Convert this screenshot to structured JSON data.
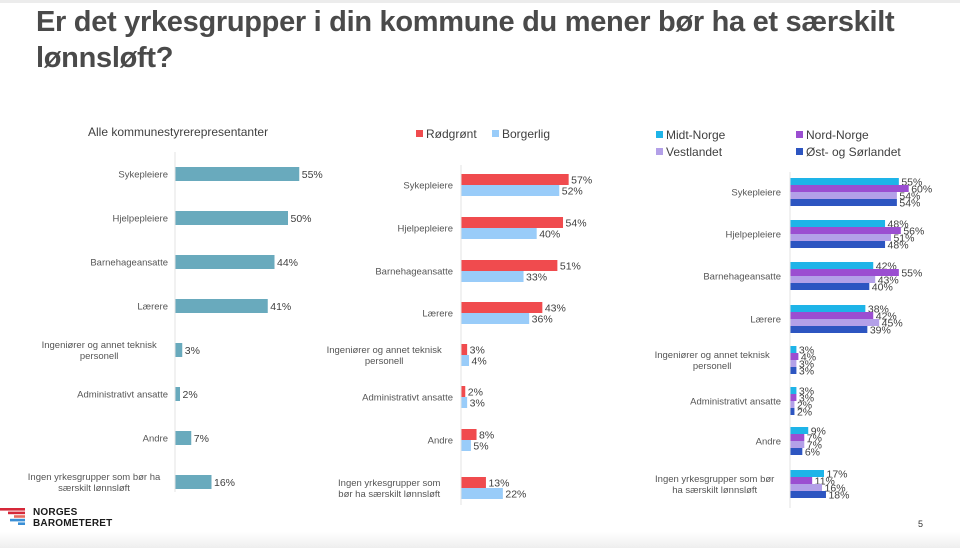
{
  "slide": {
    "title": "Er det yrkesgrupper i din kommune du mener bør ha et særskilt lønnsløft?",
    "page_number": "5",
    "logo_line1": "NORGES",
    "logo_line2": "BAROMETERET"
  },
  "colors": {
    "all": "#69AABD",
    "rodgront": "#F04B4E",
    "borgerlig": "#99CCF9",
    "midt_norge": "#1EB4E8",
    "nord_norge": "#9B4ED1",
    "vestlandet": "#B3A0E8",
    "ost_sorlandet": "#2D55C1"
  },
  "chart_data": [
    {
      "type": "bar",
      "orientation": "horizontal",
      "title": "Alle kommunestyrerepresentanter",
      "categories": [
        [
          "Sykepleiere"
        ],
        [
          "Hjelpepleiere"
        ],
        [
          "Barnehageansatte"
        ],
        [
          "Lærere"
        ],
        [
          "Ingeniører og annet teknisk",
          "personell"
        ],
        [
          "Administrativt ansatte"
        ],
        [
          "Andre"
        ],
        [
          "Ingen yrkesgrupper som bør ha",
          "særskilt lønnsløft"
        ]
      ],
      "series": [
        {
          "name": "Alle kommunestyrerepresentanter",
          "color_key": "all",
          "values": [
            55,
            50,
            44,
            41,
            3,
            2,
            7,
            16
          ]
        }
      ],
      "unit": "%",
      "xlabel": "",
      "ylabel": "",
      "xlim": [
        0,
        60
      ],
      "grid": false,
      "legend": "none"
    },
    {
      "type": "bar",
      "orientation": "horizontal",
      "title": "",
      "categories": [
        [
          "Sykepleiere"
        ],
        [
          "Hjelpepleiere"
        ],
        [
          "Barnehageansatte"
        ],
        [
          "Lærere"
        ],
        [
          "Ingeniører og annet teknisk",
          "personell"
        ],
        [
          "Administrativt ansatte"
        ],
        [
          "Andre"
        ],
        [
          "Ingen yrkesgrupper som",
          "bør ha særskilt lønnsløft"
        ]
      ],
      "series": [
        {
          "name": "Rødgrønt",
          "color_key": "rodgront",
          "values": [
            57,
            54,
            51,
            43,
            3,
            2,
            8,
            13
          ]
        },
        {
          "name": "Borgerlig",
          "color_key": "borgerlig",
          "values": [
            52,
            40,
            33,
            36,
            4,
            3,
            5,
            22
          ]
        }
      ],
      "unit": "%",
      "xlabel": "",
      "ylabel": "",
      "xlim": [
        0,
        60
      ],
      "grid": false,
      "legend": "top-center"
    },
    {
      "type": "bar",
      "orientation": "horizontal",
      "title": "",
      "categories": [
        [
          "Sykepleiere"
        ],
        [
          "Hjelpepleiere"
        ],
        [
          "Barnehageansatte"
        ],
        [
          "Lærere"
        ],
        [
          "Ingeniører og annet teknisk",
          "personell"
        ],
        [
          "Administrativt ansatte"
        ],
        [
          "Andre"
        ],
        [
          "Ingen yrkesgrupper som bør",
          "ha særskilt lønnsløft"
        ]
      ],
      "series": [
        {
          "name": "Midt-Norge",
          "color_key": "midt_norge",
          "values": [
            55,
            48,
            42,
            38,
            3,
            3,
            9,
            17
          ]
        },
        {
          "name": "Nord-Norge",
          "color_key": "nord_norge",
          "values": [
            60,
            56,
            55,
            42,
            4,
            3,
            7,
            11
          ]
        },
        {
          "name": "Vestlandet",
          "color_key": "vestlandet",
          "values": [
            54,
            51,
            43,
            45,
            3,
            2,
            7,
            16
          ]
        },
        {
          "name": "Øst- og Sørlandet",
          "color_key": "ost_sorlandet",
          "values": [
            54,
            48,
            40,
            39,
            3,
            2,
            6,
            18
          ]
        }
      ],
      "unit": "%",
      "xlabel": "",
      "ylabel": "",
      "xlim": [
        0,
        60
      ],
      "grid": false,
      "legend": "top"
    }
  ]
}
